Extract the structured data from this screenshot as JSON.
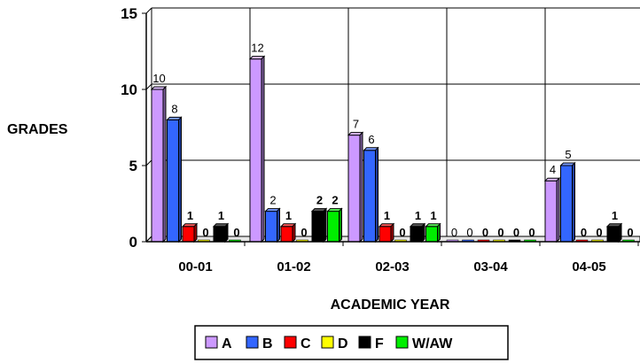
{
  "chart_data": {
    "type": "bar",
    "title": "",
    "xlabel": "ACADEMIC YEAR",
    "ylabel": "GRADES",
    "ylim": [
      0,
      15
    ],
    "yticks": [
      0,
      5,
      10,
      15
    ],
    "grid": true,
    "legend_position": "bottom",
    "categories": [
      "00-01",
      "01-02",
      "02-03",
      "03-04",
      "04-05"
    ],
    "series": [
      {
        "name": "A",
        "color": "#cc99ff",
        "values": [
          10,
          12,
          7,
          0,
          4
        ]
      },
      {
        "name": "B",
        "color": "#3366ff",
        "values": [
          8,
          2,
          6,
          0,
          5
        ]
      },
      {
        "name": "C",
        "color": "#ff0000",
        "values": [
          1,
          1,
          1,
          0,
          0
        ]
      },
      {
        "name": "D",
        "color": "#ffff00",
        "values": [
          0,
          0,
          0,
          0,
          0
        ]
      },
      {
        "name": "F",
        "color": "#000000",
        "values": [
          1,
          2,
          1,
          0,
          1
        ]
      },
      {
        "name": "W/AW",
        "color": "#00ee00",
        "values": [
          0,
          2,
          1,
          0,
          0
        ]
      }
    ]
  }
}
